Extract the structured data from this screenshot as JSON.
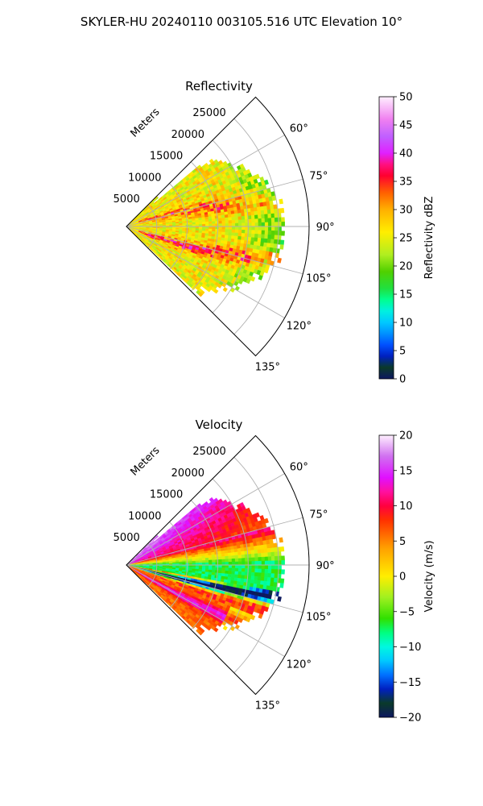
{
  "figure_title": "SKYLER-HU  20240110  003105.516 UTC Elevation 10°",
  "chart_data": [
    {
      "type": "heatmap",
      "subtype": "polar-sector-ppi",
      "title": "Reflectivity",
      "radial_axis_label": "Meters",
      "radial_ticks": [
        "5000",
        "10000",
        "15000",
        "20000",
        "25000"
      ],
      "radial_tick_values": [
        5000,
        10000,
        15000,
        20000,
        25000
      ],
      "rlim": [
        0,
        30000
      ],
      "azimuth_range_deg": [
        45,
        135
      ],
      "azimuth_ticks": [
        "60°",
        "75°",
        "90°",
        "105°",
        "120°",
        "135°"
      ],
      "azimuth_tick_values": [
        60,
        75,
        90,
        105,
        120,
        135
      ],
      "data_max_range_m": 26000,
      "grid": true,
      "colorbar": {
        "label": "Reflectivity dBZ",
        "range": [
          0,
          50
        ],
        "ticks": [
          "0",
          "5",
          "10",
          "15",
          "20",
          "25",
          "30",
          "35",
          "40",
          "45",
          "50"
        ],
        "tick_values": [
          0,
          5,
          10,
          15,
          20,
          25,
          30,
          35,
          40,
          45,
          50
        ],
        "stops": [
          {
            "v": 0,
            "c": "#0d1760"
          },
          {
            "v": 2,
            "c": "#0a3a2a"
          },
          {
            "v": 4,
            "c": "#0020c0"
          },
          {
            "v": 6,
            "c": "#0050ff"
          },
          {
            "v": 8,
            "c": "#0090ff"
          },
          {
            "v": 10,
            "c": "#00c8ff"
          },
          {
            "v": 12,
            "c": "#00f0e0"
          },
          {
            "v": 14,
            "c": "#00ff90"
          },
          {
            "v": 16,
            "c": "#20e040"
          },
          {
            "v": 19,
            "c": "#50d000"
          },
          {
            "v": 22,
            "c": "#b0ee20"
          },
          {
            "v": 26,
            "c": "#ffee00"
          },
          {
            "v": 30,
            "c": "#ffb000"
          },
          {
            "v": 33,
            "c": "#ff6000"
          },
          {
            "v": 36,
            "c": "#ff0030"
          },
          {
            "v": 38,
            "c": "#ff1080"
          },
          {
            "v": 40,
            "c": "#e020ff"
          },
          {
            "v": 43,
            "c": "#c060ff"
          },
          {
            "v": 46,
            "c": "#f080f0"
          },
          {
            "v": 50,
            "c": "#fff0ff"
          }
        ]
      },
      "field_description_values": {
        "main_mean": 26,
        "streak_max": 37,
        "outer_edge_value": 20
      }
    },
    {
      "type": "heatmap",
      "subtype": "polar-sector-ppi",
      "title": "Velocity",
      "radial_axis_label": "Meters",
      "radial_ticks": [
        "5000",
        "10000",
        "15000",
        "20000",
        "25000"
      ],
      "radial_tick_values": [
        5000,
        10000,
        15000,
        20000,
        25000
      ],
      "rlim": [
        0,
        30000
      ],
      "azimuth_range_deg": [
        45,
        135
      ],
      "azimuth_ticks": [
        "60°",
        "75°",
        "90°",
        "105°",
        "120°",
        "135°"
      ],
      "azimuth_tick_values": [
        60,
        75,
        90,
        105,
        120,
        135
      ],
      "data_max_range_m": 26000,
      "grid": true,
      "colorbar": {
        "label": "Velocity (m/s)",
        "range": [
          -20,
          20
        ],
        "ticks": [
          "−20",
          "−15",
          "−10",
          "−5",
          "0",
          "5",
          "10",
          "15",
          "20"
        ],
        "tick_values": [
          -20,
          -15,
          -10,
          -5,
          0,
          5,
          10,
          15,
          20
        ],
        "stops": [
          {
            "v": -20,
            "c": "#0d1760"
          },
          {
            "v": -18,
            "c": "#0a3a2a"
          },
          {
            "v": -16,
            "c": "#0020c0"
          },
          {
            "v": -14,
            "c": "#0070ff"
          },
          {
            "v": -12,
            "c": "#00c8ff"
          },
          {
            "v": -10,
            "c": "#00f8e0"
          },
          {
            "v": -8,
            "c": "#00ff80"
          },
          {
            "v": -6,
            "c": "#30e000"
          },
          {
            "v": -3,
            "c": "#a0f020"
          },
          {
            "v": 0,
            "c": "#ffee00"
          },
          {
            "v": 4,
            "c": "#ffa000"
          },
          {
            "v": 8,
            "c": "#ff3000"
          },
          {
            "v": 10,
            "c": "#ff0040"
          },
          {
            "v": 12,
            "c": "#ff10a0"
          },
          {
            "v": 14,
            "c": "#e010ff"
          },
          {
            "v": 17,
            "c": "#d070f0"
          },
          {
            "v": 20,
            "c": "#fff0ff"
          }
        ]
      },
      "field_description_values": {
        "north_sector_value": 12,
        "center_band_value": -7,
        "south_band_value": 6
      }
    }
  ]
}
